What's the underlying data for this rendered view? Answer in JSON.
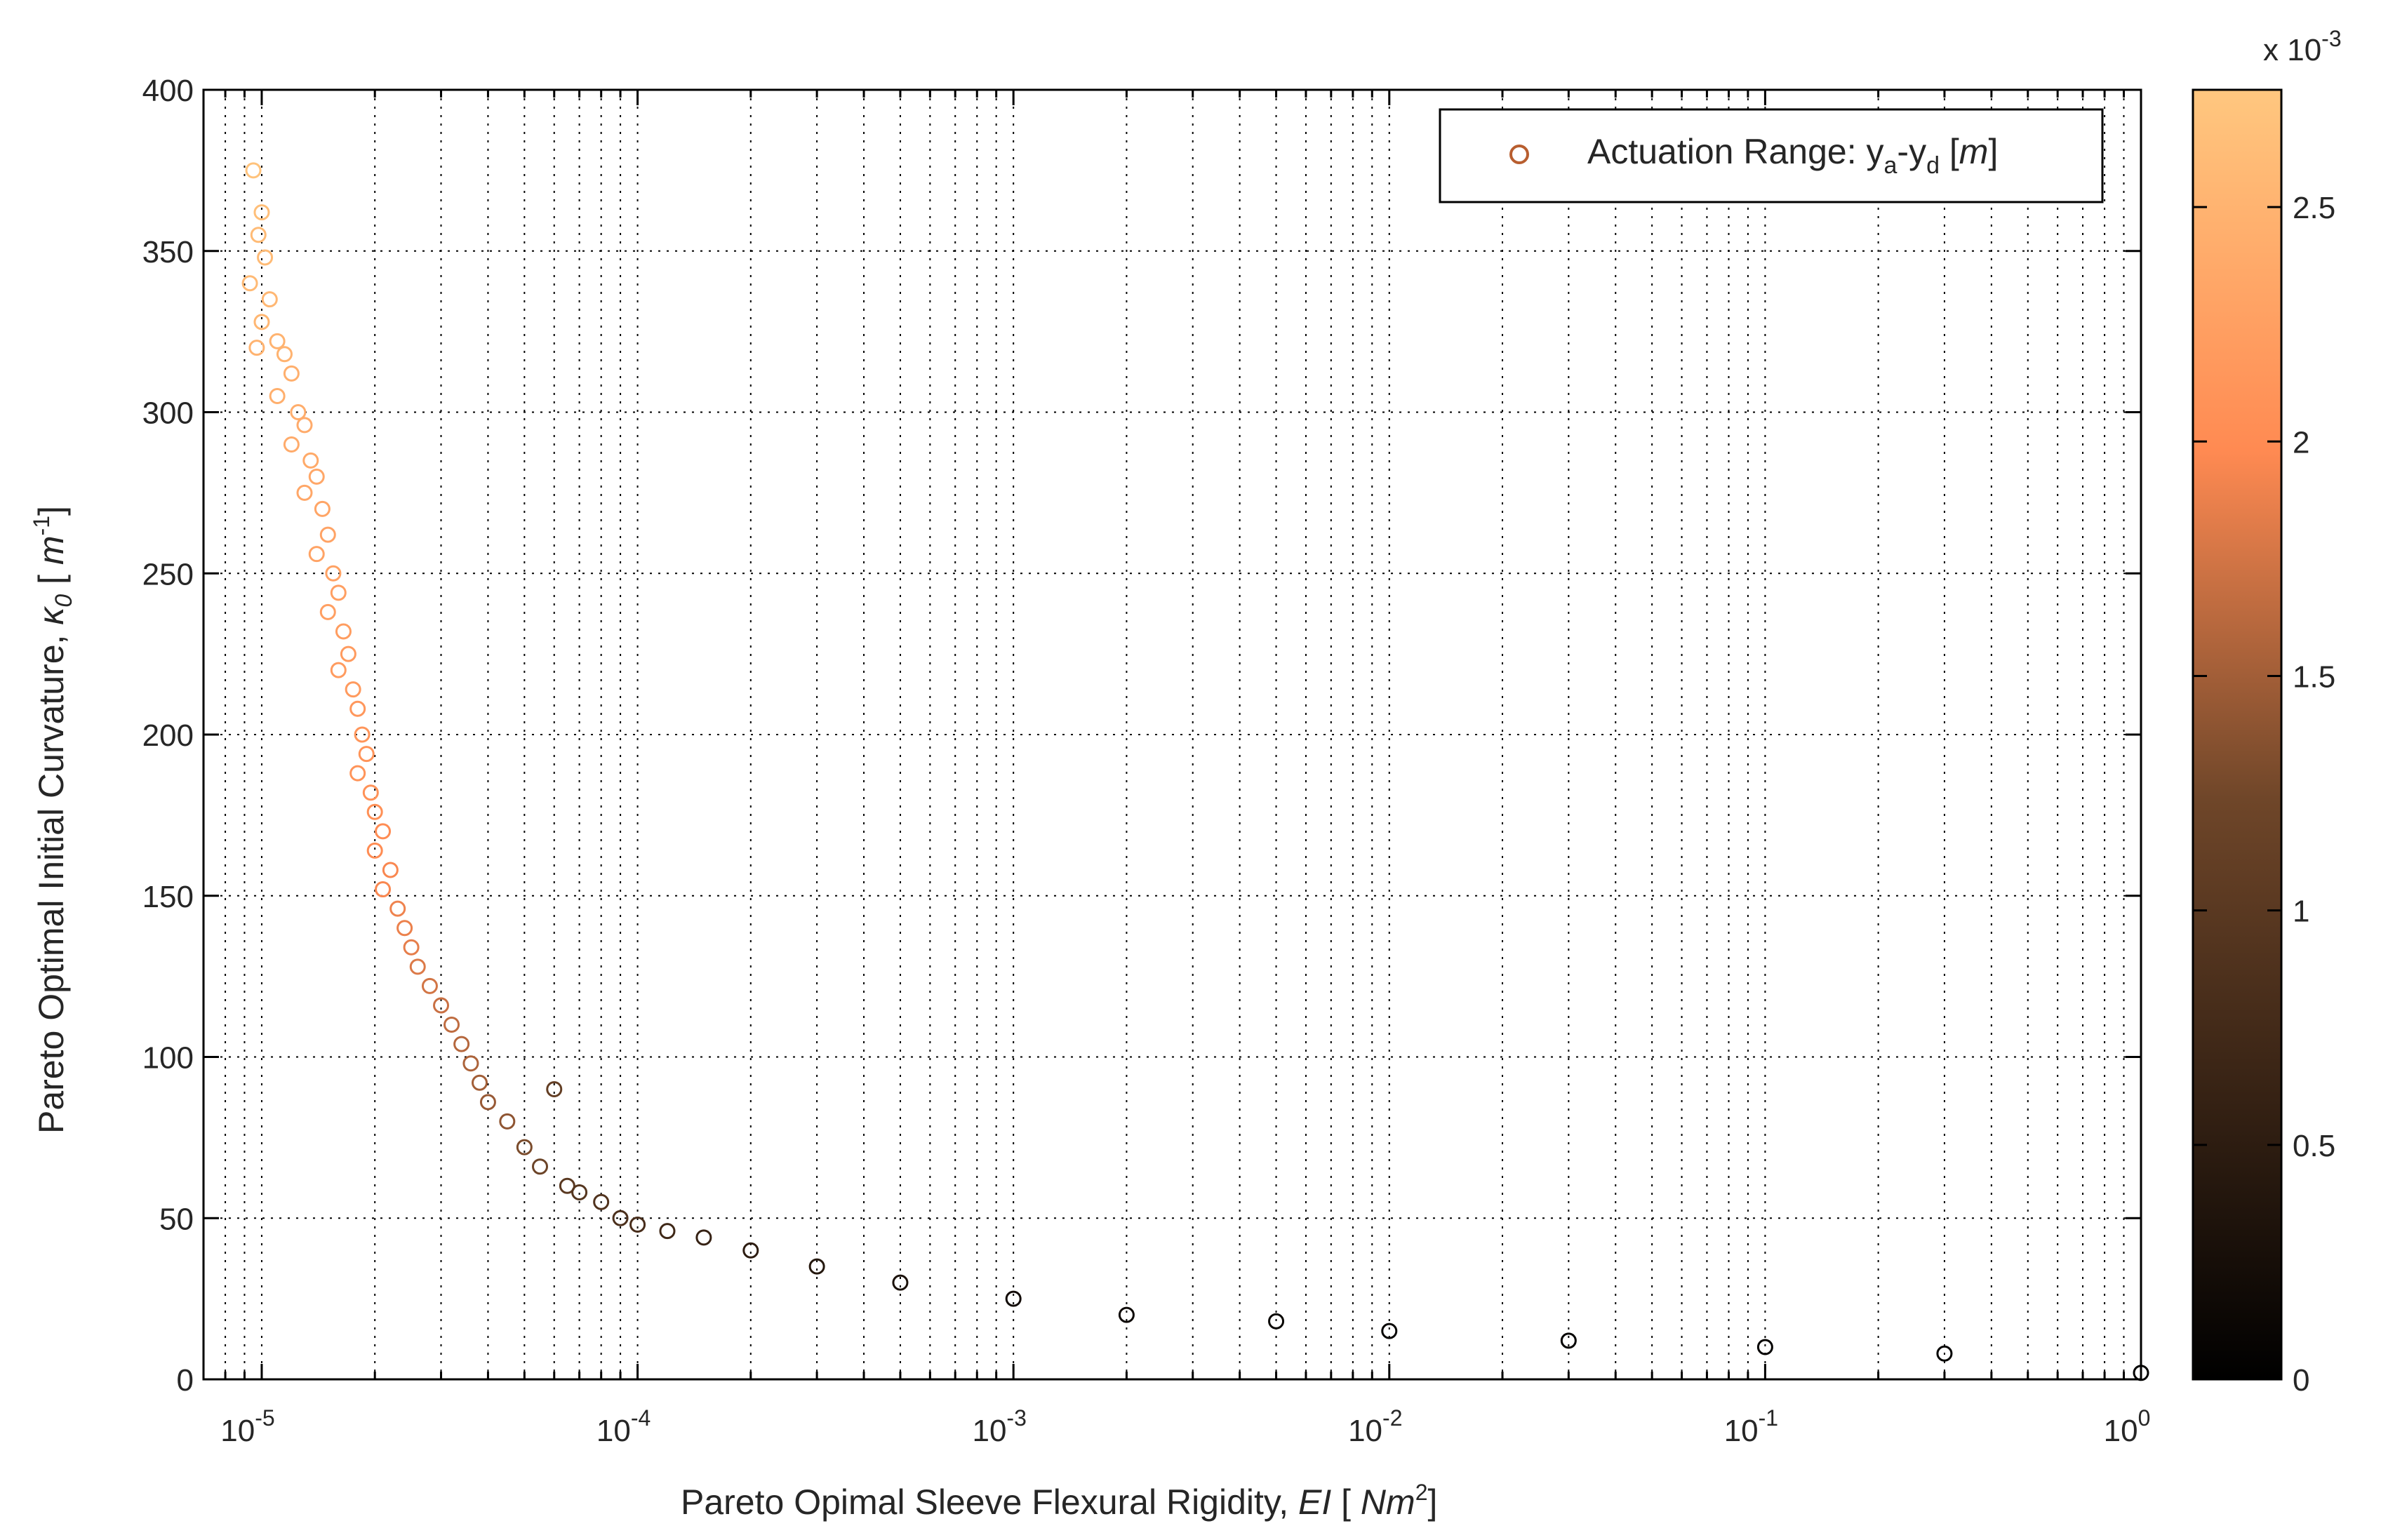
{
  "chart_data": {
    "type": "scatter",
    "x_scale": "log",
    "y_scale": "linear",
    "xlim": [
      7e-06,
      1.0
    ],
    "ylim": [
      0,
      400
    ],
    "grid": true,
    "legend_position": "top-right",
    "legend_label": "Actuation Range: y_a-y_d [m]",
    "xlabel": "Pareto Opimal Sleeve Flexural Rigidity, EI [Nm^2]",
    "ylabel": "Pareto Optimal Initial Curvature, κ_0 [m^-1]",
    "x_ticks": [
      "10^-5",
      "10^-4",
      "10^-3",
      "10^-2",
      "10^-1",
      "10^0"
    ],
    "y_ticks": [
      0,
      50,
      100,
      150,
      200,
      250,
      300,
      350,
      400
    ],
    "colorbar": {
      "label_exponent": "x 10^-3",
      "min": 0,
      "max": 0.00275,
      "ticks": [
        "0",
        "0.5",
        "1",
        "1.5",
        "2",
        "2.5"
      ],
      "colormap": "copper",
      "colors": [
        "#000000",
        "#7f4f32",
        "#ffc77f"
      ]
    },
    "series": [
      {
        "name": "Actuation Range: y_a-y_d [m]",
        "marker": "open-circle",
        "points": [
          [
            9.5e-06,
            375,
            2.7
          ],
          [
            1e-05,
            362,
            2.65
          ],
          [
            9.8e-06,
            355,
            2.6
          ],
          [
            1.02e-05,
            348,
            2.6
          ],
          [
            9.3e-06,
            340,
            2.58
          ],
          [
            1.05e-05,
            335,
            2.55
          ],
          [
            1e-05,
            328,
            2.55
          ],
          [
            1.1e-05,
            322,
            2.5
          ],
          [
            9.7e-06,
            320,
            2.5
          ],
          [
            1.15e-05,
            318,
            2.5
          ],
          [
            1.2e-05,
            312,
            2.45
          ],
          [
            1.1e-05,
            305,
            2.45
          ],
          [
            1.25e-05,
            300,
            2.42
          ],
          [
            1.3e-05,
            296,
            2.4
          ],
          [
            1.2e-05,
            290,
            2.4
          ],
          [
            1.35e-05,
            285,
            2.38
          ],
          [
            1.4e-05,
            280,
            2.35
          ],
          [
            1.3e-05,
            275,
            2.35
          ],
          [
            1.45e-05,
            270,
            2.32
          ],
          [
            1.5e-05,
            262,
            2.3
          ],
          [
            1.4e-05,
            256,
            2.3
          ],
          [
            1.55e-05,
            250,
            2.28
          ],
          [
            1.6e-05,
            244,
            2.25
          ],
          [
            1.5e-05,
            238,
            2.25
          ],
          [
            1.65e-05,
            232,
            2.22
          ],
          [
            1.7e-05,
            225,
            2.2
          ],
          [
            1.6e-05,
            220,
            2.2
          ],
          [
            1.75e-05,
            214,
            2.18
          ],
          [
            1.8e-05,
            208,
            2.15
          ],
          [
            1.85e-05,
            200,
            2.12
          ],
          [
            1.9e-05,
            194,
            2.1
          ],
          [
            1.8e-05,
            188,
            2.1
          ],
          [
            1.95e-05,
            182,
            2.08
          ],
          [
            2e-05,
            176,
            2.05
          ],
          [
            2.1e-05,
            170,
            2.0
          ],
          [
            2e-05,
            164,
            2.0
          ],
          [
            2.2e-05,
            158,
            1.95
          ],
          [
            2.1e-05,
            152,
            1.95
          ],
          [
            2.3e-05,
            146,
            1.9
          ],
          [
            2.4e-05,
            140,
            1.88
          ],
          [
            2.5e-05,
            134,
            1.85
          ],
          [
            2.6e-05,
            128,
            1.8
          ],
          [
            2.8e-05,
            122,
            1.75
          ],
          [
            3e-05,
            116,
            1.7
          ],
          [
            3.2e-05,
            110,
            1.65
          ],
          [
            3.4e-05,
            104,
            1.6
          ],
          [
            3.6e-05,
            98,
            1.55
          ],
          [
            3.8e-05,
            92,
            1.5
          ],
          [
            4e-05,
            86,
            1.45
          ],
          [
            4.5e-05,
            80,
            1.4
          ],
          [
            5e-05,
            72,
            1.3
          ],
          [
            5.5e-05,
            66,
            1.2
          ],
          [
            6e-05,
            90,
            1.1
          ],
          [
            6.5e-05,
            60,
            1.0
          ],
          [
            7e-05,
            58,
            0.95
          ],
          [
            8e-05,
            55,
            0.9
          ],
          [
            9e-05,
            50,
            0.85
          ],
          [
            0.0001,
            48,
            0.8
          ],
          [
            0.00012,
            46,
            0.7
          ],
          [
            0.00015,
            44,
            0.6
          ],
          [
            0.0002,
            40,
            0.5
          ],
          [
            0.0003,
            35,
            0.4
          ],
          [
            0.0005,
            30,
            0.3
          ],
          [
            0.001,
            25,
            0.2
          ],
          [
            0.002,
            20,
            0.15
          ],
          [
            0.005,
            18,
            0.1
          ],
          [
            0.01,
            15,
            0.08
          ],
          [
            0.03,
            12,
            0.05
          ],
          [
            0.1,
            10,
            0.04
          ],
          [
            0.3,
            8,
            0.03
          ],
          [
            1.0,
            2,
            0.01
          ]
        ]
      }
    ]
  }
}
